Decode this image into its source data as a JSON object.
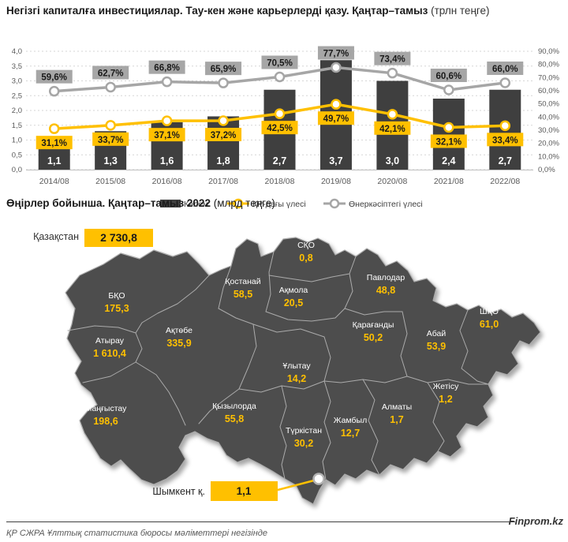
{
  "header": {
    "title_bold": "Негізгі капиталға инвестициялар. Тау-кен және карьерлерді қазу. Қаңтар–тамыз",
    "title_unit": " (трлн теңге)"
  },
  "chart_data": {
    "type": "combo-bar-line",
    "categories": [
      "2014/08",
      "2015/08",
      "2016/08",
      "2017/08",
      "2018/08",
      "2019/08",
      "2020/08",
      "2021/08",
      "2022/08"
    ],
    "series": [
      {
        "name": "Көлем",
        "type": "bar",
        "axis": "left",
        "values": [
          1.1,
          1.3,
          1.6,
          1.8,
          2.7,
          3.7,
          3.0,
          2.4,
          2.7
        ],
        "labels": [
          "1,1",
          "1,3",
          "1,6",
          "1,8",
          "2,7",
          "3,7",
          "3,0",
          "2,4",
          "2,7"
        ],
        "color": "#3F3F3F"
      },
      {
        "name": "ҚР-дағы үлесі",
        "type": "line",
        "axis": "right",
        "values": [
          31.1,
          33.7,
          37.1,
          37.2,
          42.5,
          49.7,
          42.1,
          32.1,
          33.4
        ],
        "labels": [
          "31,1%",
          "33,7%",
          "37,1%",
          "37,2%",
          "42,5%",
          "49,7%",
          "42,1%",
          "32,1%",
          "33,4%"
        ],
        "color": "#FFC000"
      },
      {
        "name": "Өнеркәсіптегі үлесі",
        "type": "line",
        "axis": "right",
        "values": [
          59.6,
          62.7,
          66.8,
          65.9,
          70.5,
          77.7,
          73.4,
          60.6,
          66.0
        ],
        "labels": [
          "59,6%",
          "62,7%",
          "66,8%",
          "65,9%",
          "70,5%",
          "77,7%",
          "73,4%",
          "60,6%",
          "66,0%"
        ],
        "color": "#A6A6A6"
      }
    ],
    "left_axis": {
      "min": 0,
      "max": 4,
      "tick_labels": [
        "4,0",
        "3,5",
        "3,0",
        "2,5",
        "2,0",
        "1,5",
        "1,0",
        "0,5",
        "0,0"
      ]
    },
    "right_axis": {
      "min": 0,
      "max": 90,
      "tick_labels": [
        "90,0%",
        "80,0%",
        "70,0%",
        "60,0%",
        "50,0%",
        "40,0%",
        "30,0%",
        "20,0%",
        "10,0%",
        "0,0%"
      ]
    },
    "grid": true,
    "legend_position": "bottom"
  },
  "map_section": {
    "title_bold": "Өңірлер бойынша. Қаңтар–тамыз 2022",
    "title_unit": " (млрд теңге)",
    "total": {
      "label": "Қазақстан",
      "value": "2 730,8"
    },
    "regions": [
      {
        "name": "СҚО",
        "value": "0,8"
      },
      {
        "name": "Қостанай",
        "value": "58,5"
      },
      {
        "name": "Ақмола",
        "value": "20,5"
      },
      {
        "name": "Павлодар",
        "value": "48,8"
      },
      {
        "name": "БҚО",
        "value": "175,3"
      },
      {
        "name": "Ақтөбе",
        "value": "335,9"
      },
      {
        "name": "Атырау",
        "value": "1 610,4"
      },
      {
        "name": "Қарағанды",
        "value": "50,2"
      },
      {
        "name": "Абай",
        "value": "53,9"
      },
      {
        "name": "ШҚО",
        "value": "61,0"
      },
      {
        "name": "Ұлытау",
        "value": "14,2"
      },
      {
        "name": "Жетісу",
        "value": "1,2"
      },
      {
        "name": "Қызылорда",
        "value": "55,8"
      },
      {
        "name": "Маңғыстау",
        "value": "198,6"
      },
      {
        "name": "Алматы",
        "value": "1,7"
      },
      {
        "name": "Жамбыл",
        "value": "12,7"
      },
      {
        "name": "Түркістан",
        "value": "30,2"
      }
    ],
    "callout": {
      "label": "Шымкент қ.",
      "value": "1,1"
    }
  },
  "footer": {
    "brand": "Finprom.kz",
    "source": "ҚР СЖРА Ұлттық статистика бюросы мәліметтері негізінде"
  },
  "colors": {
    "accent": "#FFC000",
    "bar": "#3F3F3F",
    "line_secondary": "#A6A6A6",
    "map_fill": "#4D4D4D",
    "map_border": "#ABABAB",
    "grid": "#D6D6D6",
    "axis_text": "#595959"
  }
}
